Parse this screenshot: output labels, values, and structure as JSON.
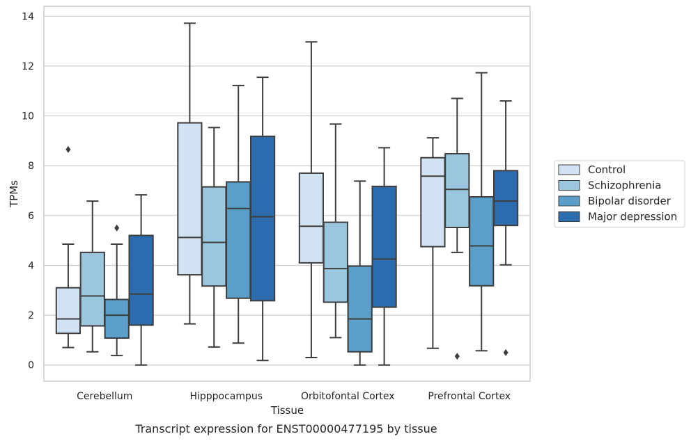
{
  "chart_data": {
    "type": "box",
    "caption": "Transcript expression for ENST00000477195 by tissue",
    "xlabel": "Tissue",
    "ylabel": "TPMs",
    "ylim": [
      -0.65,
      14.4
    ],
    "yticks": [
      0,
      2,
      4,
      6,
      8,
      10,
      12,
      14
    ],
    "grid": true,
    "legend_position": "right",
    "categories": [
      "Cerebellum",
      "Hipppocampus",
      "Orbitofontal Cortex",
      "Prefrontal Cortex"
    ],
    "series": [
      {
        "name": "Control",
        "color": "#d1e2f2",
        "boxes": [
          {
            "whislo": 0.7,
            "q1": 1.27,
            "med": 1.85,
            "q3": 3.1,
            "whishi": 4.85,
            "fliers": [
              8.65
            ]
          },
          {
            "whislo": 1.65,
            "q1": 3.62,
            "med": 5.12,
            "q3": 9.72,
            "whishi": 13.72,
            "fliers": []
          },
          {
            "whislo": 0.3,
            "q1": 4.1,
            "med": 5.57,
            "q3": 7.7,
            "whishi": 12.97,
            "fliers": []
          },
          {
            "whislo": 0.67,
            "q1": 4.75,
            "med": 7.58,
            "q3": 8.32,
            "whishi": 9.12,
            "fliers": []
          }
        ]
      },
      {
        "name": "Schizophrenia",
        "color": "#9ac7df",
        "boxes": [
          {
            "whislo": 0.53,
            "q1": 1.57,
            "med": 2.77,
            "q3": 4.52,
            "whishi": 6.58,
            "fliers": []
          },
          {
            "whislo": 0.72,
            "q1": 3.17,
            "med": 4.92,
            "q3": 7.15,
            "whishi": 9.53,
            "fliers": []
          },
          {
            "whislo": 1.1,
            "q1": 2.52,
            "med": 3.87,
            "q3": 5.73,
            "whishi": 9.67,
            "fliers": []
          },
          {
            "whislo": 4.52,
            "q1": 5.52,
            "med": 7.05,
            "q3": 8.48,
            "whishi": 10.7,
            "fliers": [
              0.35
            ]
          }
        ]
      },
      {
        "name": "Bipolar disorder",
        "color": "#5a9ec9",
        "boxes": [
          {
            "whislo": 0.38,
            "q1": 1.08,
            "med": 2.0,
            "q3": 2.63,
            "whishi": 4.85,
            "fliers": [
              5.5
            ]
          },
          {
            "whislo": 0.88,
            "q1": 2.68,
            "med": 6.28,
            "q3": 7.35,
            "whishi": 11.22,
            "fliers": []
          },
          {
            "whislo": 0.0,
            "q1": 0.53,
            "med": 1.85,
            "q3": 3.97,
            "whishi": 7.38,
            "fliers": []
          },
          {
            "whislo": 0.57,
            "q1": 3.18,
            "med": 4.78,
            "q3": 6.75,
            "whishi": 11.73,
            "fliers": []
          }
        ]
      },
      {
        "name": "Major depression",
        "color": "#2c6bad",
        "boxes": [
          {
            "whislo": 0.0,
            "q1": 1.6,
            "med": 2.85,
            "q3": 5.2,
            "whishi": 6.83,
            "fliers": []
          },
          {
            "whislo": 0.18,
            "q1": 2.58,
            "med": 5.95,
            "q3": 9.18,
            "whishi": 11.55,
            "fliers": []
          },
          {
            "whislo": 0.0,
            "q1": 2.32,
            "med": 4.25,
            "q3": 7.17,
            "whishi": 8.72,
            "fliers": []
          },
          {
            "whislo": 4.02,
            "q1": 5.6,
            "med": 6.58,
            "q3": 7.8,
            "whishi": 10.6,
            "fliers": [
              0.5
            ]
          }
        ]
      }
    ]
  }
}
